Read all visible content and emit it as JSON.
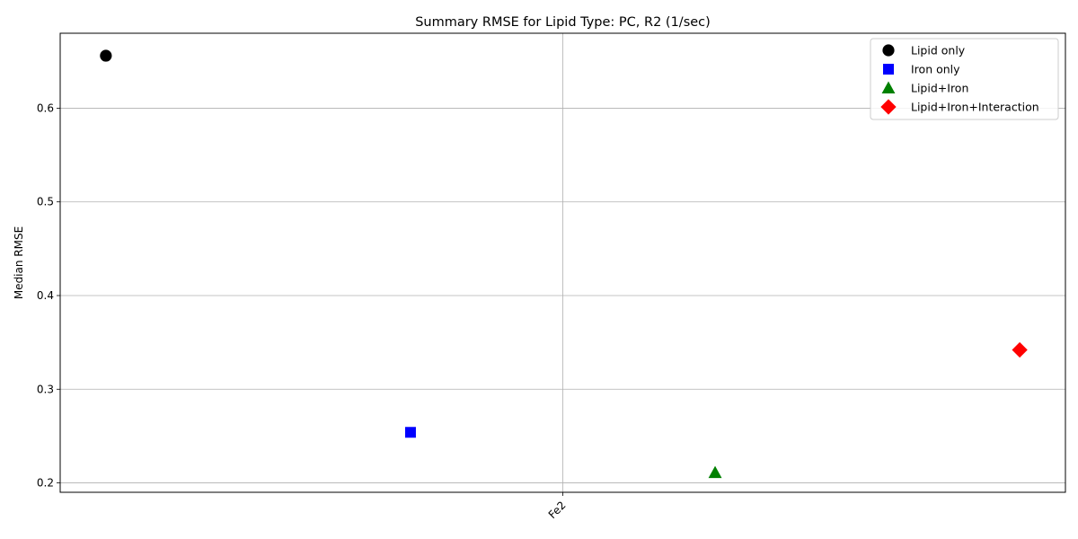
{
  "chart_data": {
    "type": "scatter",
    "title": "Summary RMSE for Lipid Type: PC, R2 (1/sec)",
    "xlabel": "",
    "ylabel": "Median RMSE",
    "x_tick_labels": [
      "Fe2"
    ],
    "ylim": [
      0.19,
      0.68
    ],
    "y_ticks": [
      0.2,
      0.3,
      0.4,
      0.5,
      0.6
    ],
    "y_tick_labels": [
      "0.2",
      "0.3",
      "0.4",
      "0.5",
      "0.6"
    ],
    "grid": true,
    "legend_position": "top-right",
    "series": [
      {
        "name": "Lipid only",
        "marker": "circle",
        "color": "#000000",
        "x_offset": -1.5,
        "value": 0.656
      },
      {
        "name": "Iron only",
        "marker": "square",
        "color": "#0000ff",
        "x_offset": -0.5,
        "value": 0.254
      },
      {
        "name": "Lipid+Iron",
        "marker": "triangle",
        "color": "#008000",
        "x_offset": 0.5,
        "value": 0.211
      },
      {
        "name": "Lipid+Iron+Interaction",
        "marker": "diamond",
        "color": "#ff0000",
        "x_offset": 1.5,
        "value": 0.342
      }
    ]
  }
}
